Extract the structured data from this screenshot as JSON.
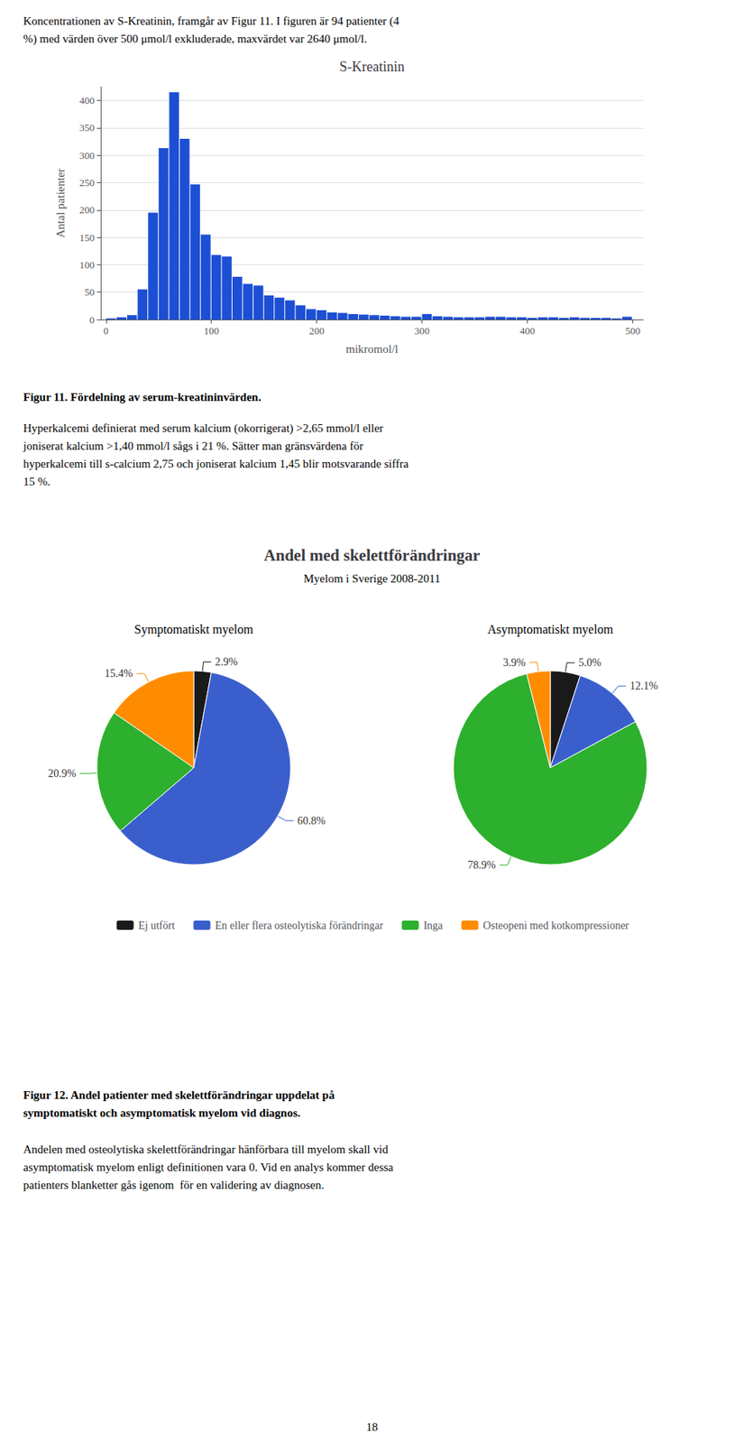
{
  "chart_data": [
    {
      "type": "histogram",
      "title": "S-Kreatinin",
      "xlabel": "mikromol/l",
      "ylabel": "Antal patienter",
      "color": "#1c4fd4",
      "bins": [
        0,
        10,
        20,
        30,
        40,
        50,
        60,
        70,
        80,
        90,
        100,
        110,
        120,
        130,
        140,
        150,
        160,
        170,
        180,
        190,
        200,
        210,
        220,
        230,
        240,
        250,
        260,
        270,
        280,
        290,
        300,
        310,
        320,
        330,
        340,
        350,
        360,
        370,
        380,
        390,
        400,
        410,
        420,
        430,
        440,
        450,
        460,
        470,
        480,
        490,
        500
      ],
      "values": [
        2,
        4,
        8,
        55,
        195,
        313,
        415,
        330,
        247,
        155,
        118,
        115,
        78,
        65,
        62,
        44,
        40,
        35,
        26,
        19,
        17,
        13,
        12,
        10,
        9,
        8,
        7,
        6,
        5,
        5,
        10,
        6,
        5,
        4,
        4,
        4,
        5,
        5,
        4,
        4,
        3,
        4,
        4,
        3,
        4,
        3,
        3,
        3,
        2,
        5
      ],
      "xlim": [
        -5,
        510
      ],
      "ylim": [
        0,
        425
      ],
      "xticks": [
        0,
        100,
        200,
        300,
        400,
        500
      ],
      "yticks": [
        0,
        50,
        100,
        150,
        200,
        250,
        300,
        350,
        400
      ],
      "grid": true,
      "annotations": [
        "Koncentrationen av S-Kreatinin, framgår av Figur 11. I figuren är 94 patienter (4",
        "%) med värden över 500 μmol/l exkluderade, maxvärdet var 2640 μmol/l.",
        "Figur 11. Fördelning av serum-kreatininvärden.",
        "Hyperkalcemi definierat med serum kalcium (okorrigerat) >2,65 mmol/l eller\njoniserat kalcium >1,40 mmol/l sågs i 21 %. Sätter man gränsvärdena för\nhyperkalcemi till s-calcium 2,75 och joniserat kalcium 1,45 blir motsvarande siffra\n15 %."
      ]
    },
    {
      "type": "pie",
      "title": "Andel med skelettförändringar",
      "subtitle": "Myelom i Sverige 2008-2011",
      "categories": [
        "Ej utfört",
        "En eller flera osteolytiska förändringar",
        "Inga",
        "Osteopeni med kotkompressioner"
      ],
      "colors": [
        "#1a1a1a",
        "#3a5fcd",
        "#2db02d",
        "#ff8c00"
      ],
      "series": [
        {
          "name": "Symptomatiskt myelom",
          "values": [
            2.9,
            60.8,
            20.9,
            15.4
          ],
          "value_labels": [
            "2.9%",
            "60.8%",
            "20.9%",
            "15.4%"
          ]
        },
        {
          "name": "Asymptomatiskt myelom",
          "values": [
            5.0,
            12.1,
            78.9,
            3.9
          ],
          "value_labels": [
            "5.0%",
            "12.1%",
            "78.9%",
            "3.9%"
          ]
        }
      ],
      "data_labels": true,
      "legend": "bottom",
      "annotations": [
        "Figur 12. Andel patienter med skelettförändringar uppdelat på",
        "symptomatiskt och asymptomatisk myelom vid diagnos.",
        "Andelen med osteolytiska skelettförändringar hänförbara till myelom skall vid\nasymptomatisk myelom enligt definitionen vara 0. Vid en analys kommer dessa\npatienters blanketter gås igenom  för en validering av diagnosen.",
        "18"
      ]
    }
  ]
}
